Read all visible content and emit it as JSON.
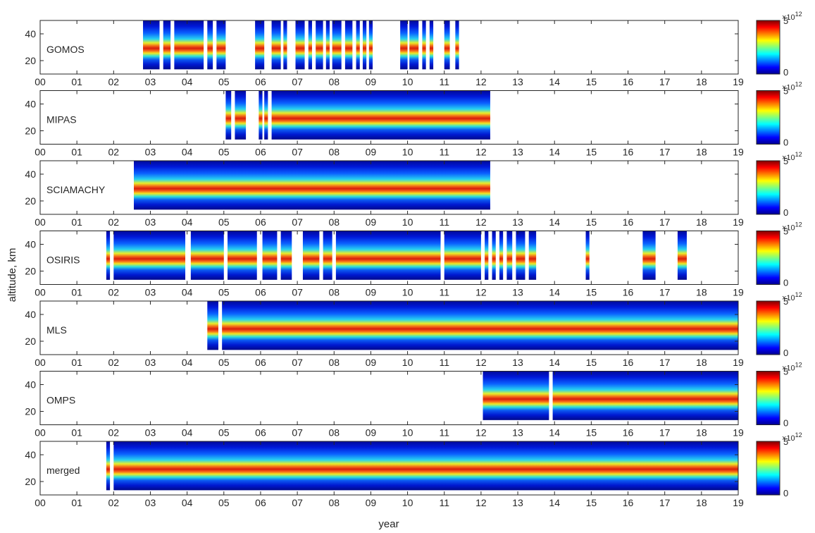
{
  "figure": {
    "ylabel": "altitude, km",
    "xlabel": "year",
    "colorbar_exponent_base": "×10",
    "colorbar_exponent_power": "12",
    "colorbar_ticks": [
      "0",
      "5"
    ],
    "colormap": "jet"
  },
  "chart_data": [
    {
      "type": "heatmap",
      "label": "GOMOS",
      "x_tick_labels": [
        "00",
        "01",
        "02",
        "03",
        "04",
        "05",
        "06",
        "07",
        "08",
        "09",
        "10",
        "11",
        "12",
        "13",
        "14",
        "15",
        "16",
        "17",
        "18",
        "19"
      ],
      "xlim": [
        2000,
        2019
      ],
      "y_ticks": [
        20,
        40
      ],
      "ylim": [
        10,
        50
      ],
      "clim": [
        0,
        5000000000000.0
      ],
      "coverage_years": [
        [
          2002.8,
          2003.25
        ],
        [
          2003.35,
          2003.55
        ],
        [
          2003.65,
          2004.45
        ],
        [
          2004.55,
          2004.7
        ],
        [
          2004.8,
          2005.05
        ],
        [
          2005.85,
          2006.1
        ],
        [
          2006.3,
          2006.55
        ],
        [
          2006.62,
          2006.72
        ],
        [
          2006.95,
          2007.2
        ],
        [
          2007.3,
          2007.4
        ],
        [
          2007.5,
          2007.7
        ],
        [
          2007.78,
          2007.88
        ],
        [
          2007.95,
          2008.2
        ],
        [
          2008.3,
          2008.5
        ],
        [
          2008.6,
          2008.7
        ],
        [
          2008.78,
          2008.88
        ],
        [
          2008.95,
          2009.05
        ],
        [
          2009.8,
          2010.0
        ],
        [
          2010.05,
          2010.3
        ],
        [
          2010.4,
          2010.5
        ],
        [
          2010.6,
          2010.7
        ],
        [
          2011.0,
          2011.15
        ],
        [
          2011.3,
          2011.4
        ]
      ]
    },
    {
      "type": "heatmap",
      "label": "MIPAS",
      "x_tick_labels": [
        "00",
        "01",
        "02",
        "03",
        "04",
        "05",
        "06",
        "07",
        "08",
        "09",
        "10",
        "11",
        "12",
        "13",
        "14",
        "15",
        "16",
        "17",
        "18",
        "19"
      ],
      "xlim": [
        2000,
        2019
      ],
      "y_ticks": [
        20,
        40
      ],
      "ylim": [
        10,
        50
      ],
      "clim": [
        0,
        5000000000000.0
      ],
      "coverage_years": [
        [
          2005.05,
          2005.2
        ],
        [
          2005.3,
          2005.6
        ],
        [
          2005.95,
          2006.05
        ],
        [
          2006.1,
          2006.2
        ],
        [
          2006.3,
          2012.25
        ]
      ]
    },
    {
      "type": "heatmap",
      "label": "SCIAMACHY",
      "x_tick_labels": [
        "00",
        "01",
        "02",
        "03",
        "04",
        "05",
        "06",
        "07",
        "08",
        "09",
        "10",
        "11",
        "12",
        "13",
        "14",
        "15",
        "16",
        "17",
        "18",
        "19"
      ],
      "xlim": [
        2000,
        2019
      ],
      "y_ticks": [
        20,
        40
      ],
      "ylim": [
        10,
        50
      ],
      "clim": [
        0,
        5000000000000.0
      ],
      "coverage_years": [
        [
          2002.55,
          2012.25
        ]
      ]
    },
    {
      "type": "heatmap",
      "label": "OSIRIS",
      "x_tick_labels": [
        "00",
        "01",
        "02",
        "03",
        "04",
        "05",
        "06",
        "07",
        "08",
        "09",
        "10",
        "11",
        "12",
        "13",
        "14",
        "15",
        "16",
        "17",
        "18",
        "19"
      ],
      "xlim": [
        2000,
        2019
      ],
      "y_ticks": [
        20,
        40
      ],
      "ylim": [
        10,
        50
      ],
      "clim": [
        0,
        5000000000000.0
      ],
      "coverage_years": [
        [
          2001.8,
          2001.9
        ],
        [
          2002.0,
          2003.95
        ],
        [
          2004.1,
          2005.0
        ],
        [
          2005.1,
          2005.9
        ],
        [
          2006.05,
          2006.45
        ],
        [
          2006.55,
          2006.85
        ],
        [
          2007.15,
          2007.6
        ],
        [
          2007.7,
          2007.95
        ],
        [
          2008.05,
          2010.9
        ],
        [
          2011.0,
          2012.0
        ],
        [
          2012.1,
          2012.2
        ],
        [
          2012.3,
          2012.4
        ],
        [
          2012.5,
          2012.6
        ],
        [
          2012.7,
          2012.85
        ],
        [
          2012.95,
          2013.2
        ],
        [
          2013.3,
          2013.5
        ],
        [
          2014.85,
          2014.95
        ],
        [
          2016.4,
          2016.75
        ],
        [
          2017.35,
          2017.6
        ]
      ]
    },
    {
      "type": "heatmap",
      "label": "MLS",
      "x_tick_labels": [
        "00",
        "01",
        "02",
        "03",
        "04",
        "05",
        "06",
        "07",
        "08",
        "09",
        "10",
        "11",
        "12",
        "13",
        "14",
        "15",
        "16",
        "17",
        "18",
        "19"
      ],
      "xlim": [
        2000,
        2019
      ],
      "y_ticks": [
        20,
        40
      ],
      "ylim": [
        10,
        50
      ],
      "clim": [
        0,
        5000000000000.0
      ],
      "coverage_years": [
        [
          2004.55,
          2004.85
        ],
        [
          2004.95,
          2019.0
        ]
      ]
    },
    {
      "type": "heatmap",
      "label": "OMPS",
      "x_tick_labels": [
        "00",
        "01",
        "02",
        "03",
        "04",
        "05",
        "06",
        "07",
        "08",
        "09",
        "10",
        "11",
        "12",
        "13",
        "14",
        "15",
        "16",
        "17",
        "18",
        "19"
      ],
      "xlim": [
        2000,
        2019
      ],
      "y_ticks": [
        20,
        40
      ],
      "ylim": [
        10,
        50
      ],
      "clim": [
        0,
        5000000000000.0
      ],
      "coverage_years": [
        [
          2012.05,
          2013.85
        ],
        [
          2013.95,
          2019.0
        ]
      ]
    },
    {
      "type": "heatmap",
      "label": "merged",
      "x_tick_labels": [
        "00",
        "01",
        "02",
        "03",
        "04",
        "05",
        "06",
        "07",
        "08",
        "09",
        "10",
        "11",
        "12",
        "13",
        "14",
        "15",
        "16",
        "17",
        "18",
        "19"
      ],
      "xlim": [
        2000,
        2019
      ],
      "y_ticks": [
        20,
        40
      ],
      "ylim": [
        10,
        50
      ],
      "clim": [
        0,
        5000000000000.0
      ],
      "coverage_years": [
        [
          2001.8,
          2001.9
        ],
        [
          2002.0,
          2019.0
        ]
      ]
    }
  ]
}
